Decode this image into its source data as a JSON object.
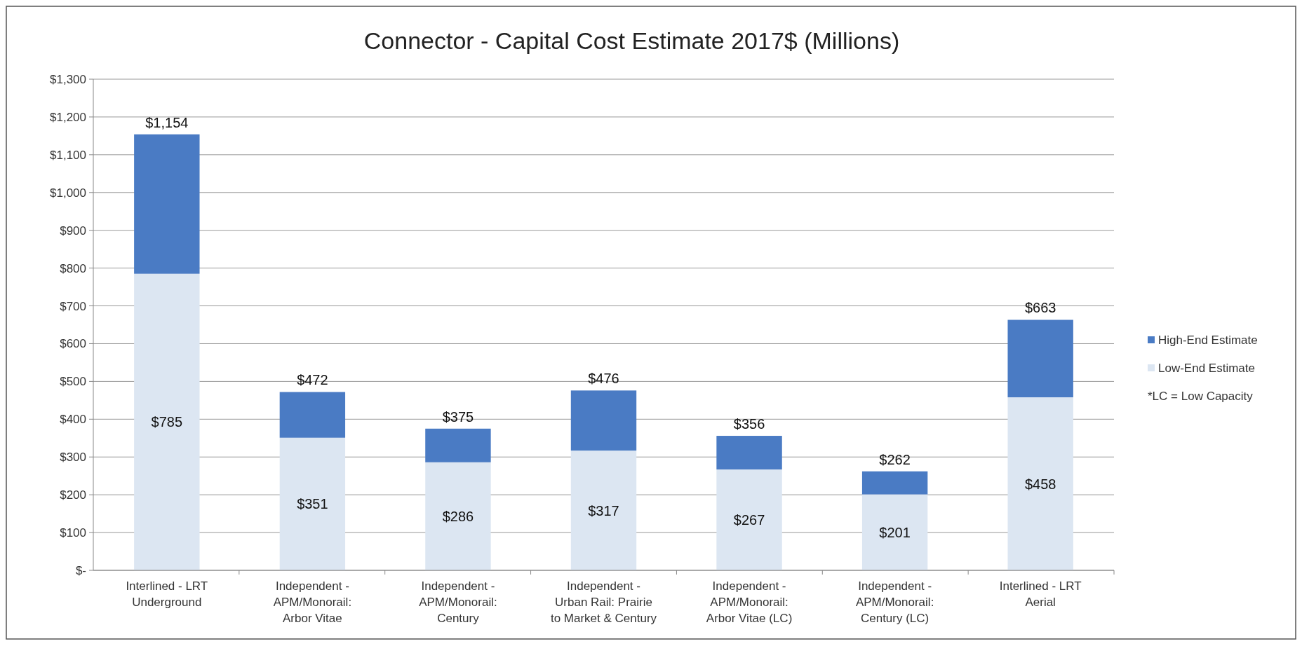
{
  "chart_data": {
    "type": "bar",
    "stacked": true,
    "title": "Connector - Capital Cost Estimate 2017$ (Millions)",
    "categories": [
      "Interlined - LRT\nUnderground",
      "Independent -\nAPM/Monorail:\nArbor Vitae",
      "Independent -\nAPM/Monorail:\nCentury",
      "Independent -\nUrban Rail: Prairie\nto Market & Century",
      "Independent -\nAPM/Monorail:\nArbor Vitae (LC)",
      "Independent -\nAPM/Monorail:\nCentury (LC)",
      "Interlined - LRT\nAerial"
    ],
    "series": [
      {
        "name": "Low-End Estimate",
        "color": "#dce6f2",
        "values": [
          785,
          351,
          286,
          317,
          267,
          201,
          458
        ],
        "value_labels": [
          "$785",
          "$351",
          "$286",
          "$317",
          "$267",
          "$201",
          "$458"
        ]
      },
      {
        "name": "High-End Estimate",
        "color": "#4a7bc4",
        "values": [
          369,
          121,
          89,
          159,
          89,
          61,
          205
        ]
      }
    ],
    "totals": [
      "$1,154",
      "$472",
      "$375",
      "$476",
      "$356",
      "$262",
      "$663"
    ],
    "ylim": [
      0,
      1300
    ],
    "yticks": [
      {
        "value": 0,
        "label": "$-"
      },
      {
        "value": 100,
        "label": "$100"
      },
      {
        "value": 200,
        "label": "$200"
      },
      {
        "value": 300,
        "label": "$300"
      },
      {
        "value": 400,
        "label": "$400"
      },
      {
        "value": 500,
        "label": "$500"
      },
      {
        "value": 600,
        "label": "$600"
      },
      {
        "value": 700,
        "label": "$700"
      },
      {
        "value": 800,
        "label": "$800"
      },
      {
        "value": 900,
        "label": "$900"
      },
      {
        "value": 1000,
        "label": "$1,000"
      },
      {
        "value": 1100,
        "label": "$1,100"
      },
      {
        "value": 1200,
        "label": "$1,200"
      },
      {
        "value": 1300,
        "label": "$1,300"
      }
    ],
    "grid": "y",
    "legend": "right",
    "annotations": [
      "*LC = Low Capacity"
    ]
  }
}
